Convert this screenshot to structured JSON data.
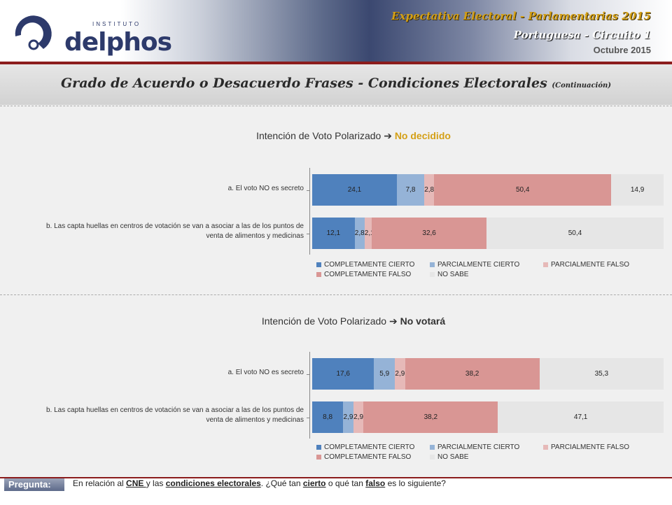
{
  "header": {
    "logo_small": "INSTITUTO",
    "logo_main": "delphos",
    "title": "Expectativa Electoral - Parlamentarias 2015",
    "subtitle": "Portuguesa - Circuito 1",
    "date": "Octubre 2015"
  },
  "page_title": "Grado de Acuerdo o Desacuerdo Frases - Condiciones Electorales",
  "page_title_small": "(Continuación)",
  "footer": {
    "label": "Pregunta:",
    "q_part1": "En relación al ",
    "q_cne": "CNE ",
    "q_part2": "y las ",
    "q_cond": "condiciones electorales",
    "q_part3": ". ¿Qué tan ",
    "q_cierto": "cierto",
    "q_part4": " o qué tan ",
    "q_falso": "falso",
    "q_part5": " es lo siguiente?"
  },
  "colors": {
    "completamente_cierto": "#4f81bd",
    "parcialmente_cierto": "#95b3d7",
    "parcialmente_falso": "#e6b9b8",
    "completamente_falso": "#d99694",
    "no_sabe": "#e6e6e6"
  },
  "chart_data": [
    {
      "type": "bar",
      "orientation": "horizontal-stacked",
      "title_prefix": "Intención de Voto Polarizado",
      "title_arrow": "➔",
      "title_emphasis": "No decidido",
      "categories": [
        "a. El voto NO es secreto",
        "b. Las capta huellas en centros de votación se van a asociar a las de los puntos de venta de alimentos y medicinas"
      ],
      "series": [
        {
          "name": "COMPLETAMENTE CIERTO",
          "values": [
            24.1,
            12.1
          ],
          "labels": [
            "24,1",
            "12,1"
          ]
        },
        {
          "name": "PARCIALMENTE CIERTO",
          "values": [
            7.8,
            2.8
          ],
          "labels": [
            "7,8",
            "2,8"
          ]
        },
        {
          "name": "PARCIALMENTE FALSO",
          "values": [
            2.8,
            2.1
          ],
          "labels": [
            "2,8",
            "2,1"
          ]
        },
        {
          "name": "COMPLETAMENTE FALSO",
          "values": [
            50.4,
            32.6
          ],
          "labels": [
            "50,4",
            "32,6"
          ]
        },
        {
          "name": "NO SABE",
          "values": [
            14.9,
            50.4
          ],
          "labels": [
            "14,9",
            "50,4"
          ]
        }
      ]
    },
    {
      "type": "bar",
      "orientation": "horizontal-stacked",
      "title_prefix": "Intención de Voto Polarizado",
      "title_arrow": "➔",
      "title_emphasis": "No votará",
      "categories": [
        "a. El voto NO es secreto",
        "b. Las capta huellas en centros de votación se van a asociar a las de los puntos de venta de alimentos y medicinas"
      ],
      "series": [
        {
          "name": "COMPLETAMENTE CIERTO",
          "values": [
            17.6,
            8.8
          ],
          "labels": [
            "17,6",
            "8,8"
          ]
        },
        {
          "name": "PARCIALMENTE CIERTO",
          "values": [
            5.9,
            2.9
          ],
          "labels": [
            "5,9",
            "2,9"
          ]
        },
        {
          "name": "PARCIALMENTE FALSO",
          "values": [
            2.9,
            2.9
          ],
          "labels": [
            "2,9",
            "2,9"
          ]
        },
        {
          "name": "COMPLETAMENTE FALSO",
          "values": [
            38.2,
            38.2
          ],
          "labels": [
            "38,2",
            "38,2"
          ]
        },
        {
          "name": "NO SABE",
          "values": [
            35.3,
            47.1
          ],
          "labels": [
            "35,3",
            "47,1"
          ]
        }
      ]
    }
  ]
}
